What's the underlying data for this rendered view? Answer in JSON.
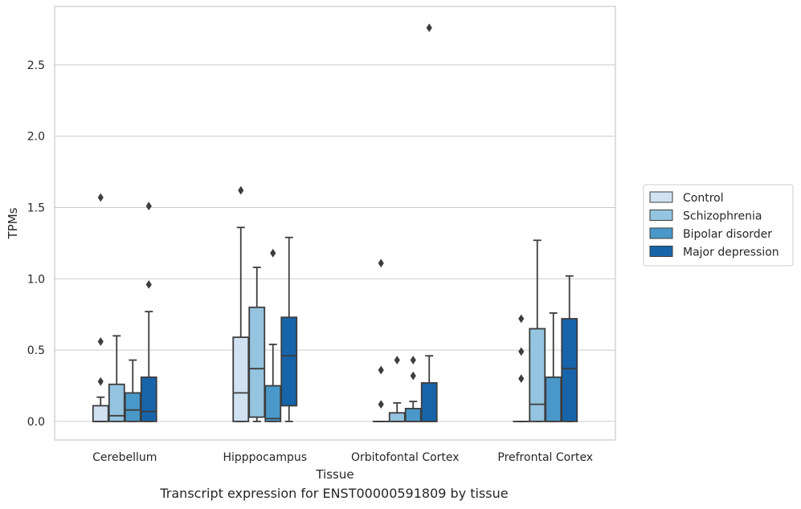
{
  "caption": "Transcript expression for ENST00000591809 by tissue",
  "chart_data": {
    "type": "box",
    "title": "",
    "xlabel": "Tissue",
    "ylabel": "TPMs",
    "ylim": [
      -0.13,
      2.91
    ],
    "yticks": [
      0.0,
      0.5,
      1.0,
      1.5,
      2.0,
      2.5
    ],
    "ytick_labels": [
      "0.0",
      "0.5",
      "1.0",
      "1.5",
      "2.0",
      "2.5"
    ],
    "grid": "horizontal",
    "legend_placement": "right",
    "categories": [
      "Cerebellum",
      "Hipppocampus",
      "Orbitofontal Cortex",
      "Prefrontal Cortex"
    ],
    "series": [
      {
        "name": "Control",
        "color": "#d0e1f2",
        "boxes": [
          {
            "whislo": 0.0,
            "q1": 0.0,
            "med": 0.0,
            "q3": 0.11,
            "whishi": 0.17,
            "fliers": [
              0.28,
              0.56,
              1.57
            ]
          },
          {
            "whislo": 0.0,
            "q1": 0.0,
            "med": 0.2,
            "q3": 0.59,
            "whishi": 1.36,
            "fliers": [
              1.62
            ]
          },
          {
            "whislo": 0.0,
            "q1": 0.0,
            "med": 0.0,
            "q3": 0.0,
            "whishi": 0.0,
            "fliers": [
              0.12,
              0.36,
              1.11
            ]
          },
          {
            "whislo": 0.0,
            "q1": 0.0,
            "med": 0.0,
            "q3": 0.0,
            "whishi": 0.0,
            "fliers": [
              0.3,
              0.49,
              0.72
            ]
          }
        ]
      },
      {
        "name": "Schizophrenia",
        "color": "#94c4df",
        "boxes": [
          {
            "whislo": 0.0,
            "q1": 0.0,
            "med": 0.04,
            "q3": 0.26,
            "whishi": 0.6,
            "fliers": []
          },
          {
            "whislo": 0.0,
            "q1": 0.03,
            "med": 0.37,
            "q3": 0.8,
            "whishi": 1.08,
            "fliers": []
          },
          {
            "whislo": 0.0,
            "q1": 0.0,
            "med": 0.0,
            "q3": 0.06,
            "whishi": 0.13,
            "fliers": [
              0.43
            ]
          },
          {
            "whislo": 0.0,
            "q1": 0.0,
            "med": 0.12,
            "q3": 0.65,
            "whishi": 1.27,
            "fliers": []
          }
        ]
      },
      {
        "name": "Bipolar disorder",
        "color": "#4a98c9",
        "boxes": [
          {
            "whislo": 0.0,
            "q1": 0.0,
            "med": 0.08,
            "q3": 0.2,
            "whishi": 0.43,
            "fliers": []
          },
          {
            "whislo": 0.0,
            "q1": 0.0,
            "med": 0.02,
            "q3": 0.25,
            "whishi": 0.54,
            "fliers": [
              1.18
            ]
          },
          {
            "whislo": 0.0,
            "q1": 0.0,
            "med": 0.0,
            "q3": 0.09,
            "whishi": 0.14,
            "fliers": [
              0.32,
              0.43
            ]
          },
          {
            "whislo": 0.0,
            "q1": 0.0,
            "med": 0.0,
            "q3": 0.31,
            "whishi": 0.76,
            "fliers": []
          }
        ]
      },
      {
        "name": "Major depression",
        "color": "#1764ab",
        "boxes": [
          {
            "whislo": 0.0,
            "q1": 0.0,
            "med": 0.07,
            "q3": 0.31,
            "whishi": 0.77,
            "fliers": [
              0.96,
              1.51
            ]
          },
          {
            "whislo": 0.0,
            "q1": 0.11,
            "med": 0.46,
            "q3": 0.73,
            "whishi": 1.29,
            "fliers": []
          },
          {
            "whislo": 0.0,
            "q1": 0.0,
            "med": 0.0,
            "q3": 0.27,
            "whishi": 0.46,
            "fliers": [
              2.76
            ]
          },
          {
            "whislo": 0.0,
            "q1": 0.0,
            "med": 0.37,
            "q3": 0.72,
            "whishi": 1.02,
            "fliers": []
          }
        ]
      }
    ]
  }
}
